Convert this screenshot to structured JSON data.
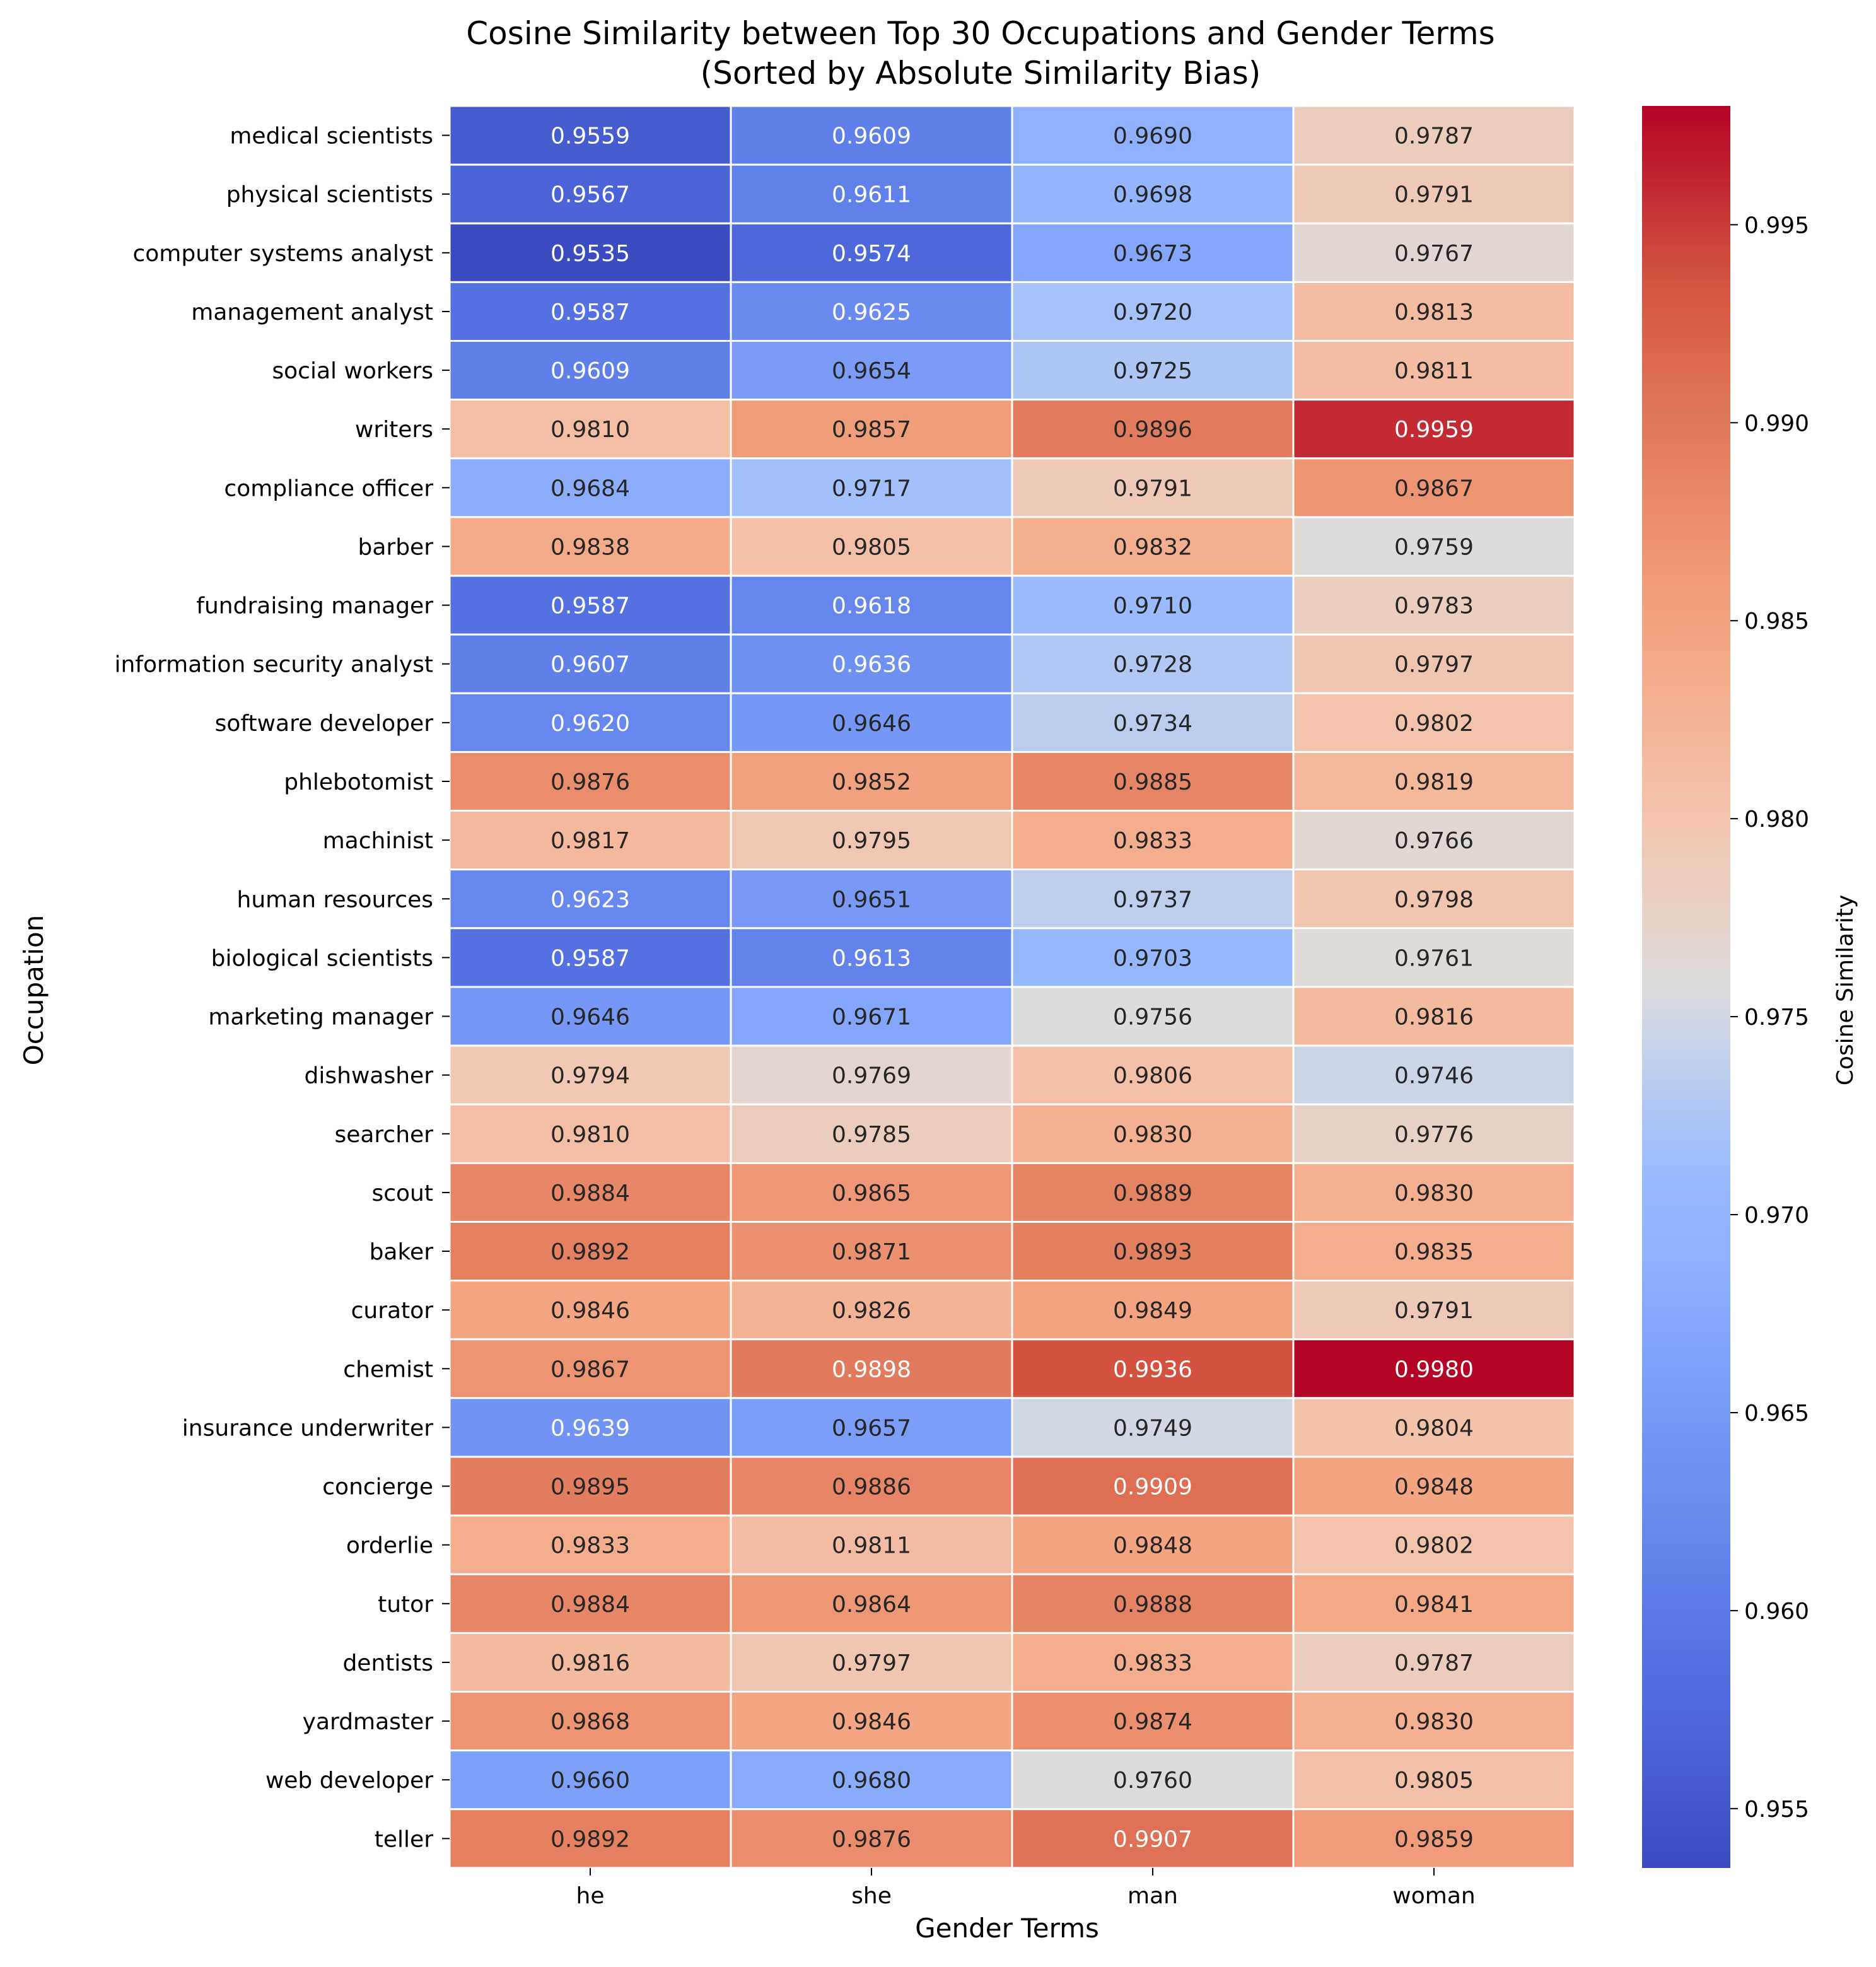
{
  "chart_data": {
    "type": "heatmap",
    "title_line1": "Cosine Similarity between Top 30 Occupations and Gender Terms",
    "title_line2": "(Sorted by Absolute Similarity Bias)",
    "xlabel": "Gender Terms",
    "ylabel": "Occupation",
    "colorbar_label": "Cosine Similarity",
    "colormap": "coolwarm",
    "vmin": 0.9535,
    "vmax": 0.998,
    "colorbar_ticks": [
      "0.955",
      "0.960",
      "0.965",
      "0.970",
      "0.975",
      "0.980",
      "0.985",
      "0.990",
      "0.995"
    ],
    "columns": [
      "he",
      "she",
      "man",
      "woman"
    ],
    "rows": [
      "medical scientists",
      "physical scientists",
      "computer systems analyst",
      "management analyst",
      "social workers",
      "writers",
      "compliance officer",
      "barber",
      "fundraising manager",
      "information security analyst",
      "software developer",
      "phlebotomist",
      "machinist",
      "human resources",
      "biological scientists",
      "marketing manager",
      "dishwasher",
      "searcher",
      "scout",
      "baker",
      "curator",
      "chemist",
      "insurance underwriter",
      "concierge",
      "orderlie",
      "tutor",
      "dentists",
      "yardmaster",
      "web developer",
      "teller"
    ],
    "values": [
      [
        "0.9559",
        "0.9609",
        "0.9690",
        "0.9787"
      ],
      [
        "0.9567",
        "0.9611",
        "0.9698",
        "0.9791"
      ],
      [
        "0.9535",
        "0.9574",
        "0.9673",
        "0.9767"
      ],
      [
        "0.9587",
        "0.9625",
        "0.9720",
        "0.9813"
      ],
      [
        "0.9609",
        "0.9654",
        "0.9725",
        "0.9811"
      ],
      [
        "0.9810",
        "0.9857",
        "0.9896",
        "0.9959"
      ],
      [
        "0.9684",
        "0.9717",
        "0.9791",
        "0.9867"
      ],
      [
        "0.9838",
        "0.9805",
        "0.9832",
        "0.9759"
      ],
      [
        "0.9587",
        "0.9618",
        "0.9710",
        "0.9783"
      ],
      [
        "0.9607",
        "0.9636",
        "0.9728",
        "0.9797"
      ],
      [
        "0.9620",
        "0.9646",
        "0.9734",
        "0.9802"
      ],
      [
        "0.9876",
        "0.9852",
        "0.9885",
        "0.9819"
      ],
      [
        "0.9817",
        "0.9795",
        "0.9833",
        "0.9766"
      ],
      [
        "0.9623",
        "0.9651",
        "0.9737",
        "0.9798"
      ],
      [
        "0.9587",
        "0.9613",
        "0.9703",
        "0.9761"
      ],
      [
        "0.9646",
        "0.9671",
        "0.9756",
        "0.9816"
      ],
      [
        "0.9794",
        "0.9769",
        "0.9806",
        "0.9746"
      ],
      [
        "0.9810",
        "0.9785",
        "0.9830",
        "0.9776"
      ],
      [
        "0.9884",
        "0.9865",
        "0.9889",
        "0.9830"
      ],
      [
        "0.9892",
        "0.9871",
        "0.9893",
        "0.9835"
      ],
      [
        "0.9846",
        "0.9826",
        "0.9849",
        "0.9791"
      ],
      [
        "0.9867",
        "0.9898",
        "0.9936",
        "0.9980"
      ],
      [
        "0.9639",
        "0.9657",
        "0.9749",
        "0.9804"
      ],
      [
        "0.9895",
        "0.9886",
        "0.9909",
        "0.9848"
      ],
      [
        "0.9833",
        "0.9811",
        "0.9848",
        "0.9802"
      ],
      [
        "0.9884",
        "0.9864",
        "0.9888",
        "0.9841"
      ],
      [
        "0.9816",
        "0.9797",
        "0.9833",
        "0.9787"
      ],
      [
        "0.9868",
        "0.9846",
        "0.9874",
        "0.9830"
      ],
      [
        "0.9660",
        "0.9680",
        "0.9760",
        "0.9805"
      ],
      [
        "0.9892",
        "0.9876",
        "0.9907",
        "0.9859"
      ]
    ]
  }
}
